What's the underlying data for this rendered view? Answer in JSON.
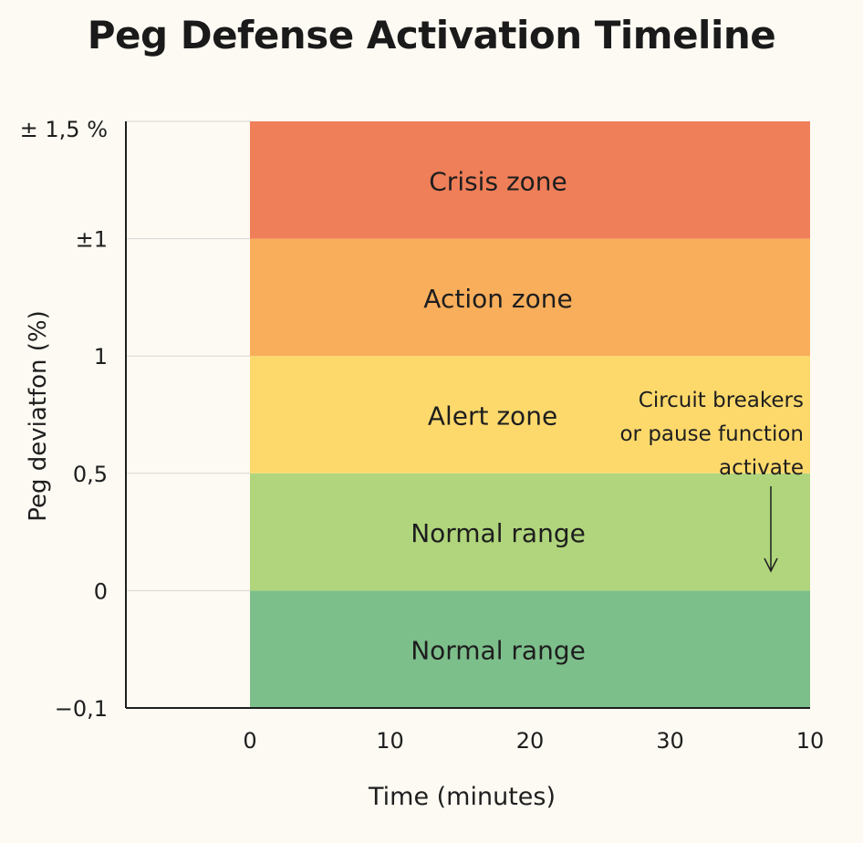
{
  "chart_data": {
    "type": "area",
    "title": "Peg Defense Activation Timeline",
    "xlabel": "Time (minutes)",
    "ylabel": "Peg deviatfon (%)",
    "xticks": [
      "0",
      "10",
      "20",
      "30",
      "10"
    ],
    "yticks": [
      "−0,1",
      "0",
      "0,5",
      "1",
      "±1",
      "± 1,5 %"
    ],
    "grid": true,
    "bands": [
      {
        "label": "Normal range",
        "y_from": "−0,1",
        "y_to": "0",
        "color": "#7dbf8b"
      },
      {
        "label": "Normal range",
        "y_from": "0",
        "y_to": "0,5",
        "color": "#b0d57c"
      },
      {
        "label": "Alert zone",
        "y_from": "0,5",
        "y_to": "1",
        "color": "#fdd96c"
      },
      {
        "label": "Action zone",
        "y_from": "1",
        "y_to": "±1",
        "color": "#f9ae5b"
      },
      {
        "label": "Crisis zone",
        "y_from": "±1",
        "y_to": "± 1,5 %",
        "color": "#ef7f59"
      }
    ],
    "annotation": {
      "lines": [
        "Circuit breakers",
        "or pause function",
        "activate"
      ],
      "arrow": "down"
    }
  }
}
